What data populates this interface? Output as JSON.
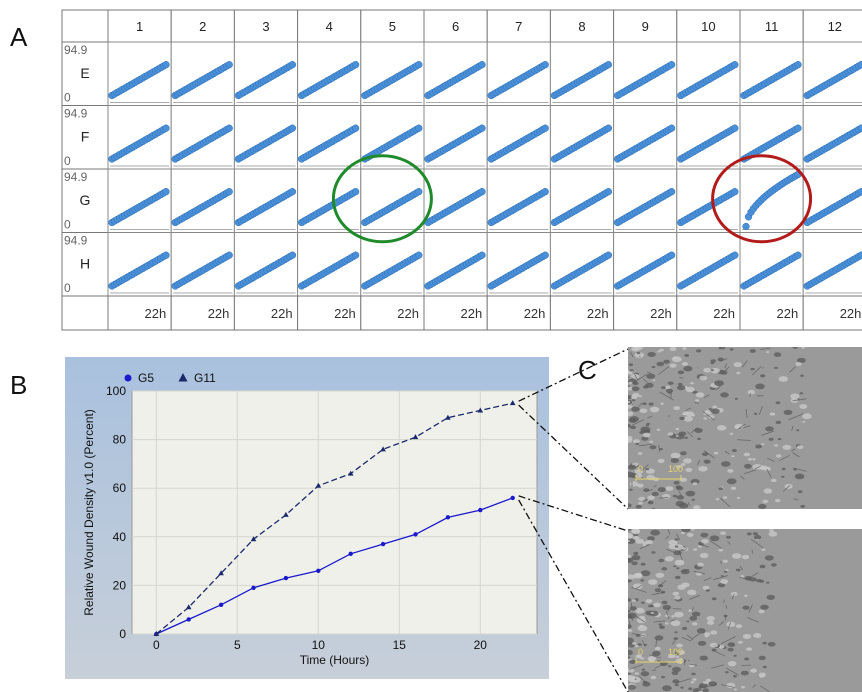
{
  "panel_labels": {
    "a": "A",
    "b": "B",
    "c": "C"
  },
  "plate": {
    "columns": [
      "1",
      "2",
      "3",
      "4",
      "5",
      "6",
      "7",
      "8",
      "9",
      "10",
      "11",
      "12"
    ],
    "rows": [
      "E",
      "F",
      "G",
      "H"
    ],
    "ymax_label": "94.9",
    "ymin_label": "0",
    "time_label": "22h",
    "highlighted_wells": [
      {
        "well": "G5",
        "circle_color": "#1e8a2a"
      },
      {
        "well": "G11",
        "circle_color": "#b31b1b"
      }
    ],
    "point_color": "#4a90d9"
  },
  "chart_data": {
    "type": "line",
    "xlabel": "Time (Hours)",
    "ylabel": "Relative Wound Density v1.0 (Percent)",
    "xlim": [
      -1.5,
      23.5
    ],
    "ylim": [
      0,
      100
    ],
    "xticks": [
      0,
      5,
      10,
      15,
      20
    ],
    "yticks": [
      0,
      20,
      40,
      60,
      80,
      100
    ],
    "grid": true,
    "legend_position": "top-left",
    "x": [
      0,
      2,
      4,
      6,
      8,
      10,
      12,
      14,
      16,
      18,
      20,
      22
    ],
    "series": [
      {
        "name": "G5",
        "marker": "circle",
        "line": "solid",
        "color": "#1a1acc",
        "values": [
          0,
          6,
          12,
          19,
          23,
          26,
          33,
          37,
          41,
          48,
          51,
          56
        ]
      },
      {
        "name": "G11",
        "marker": "triangle",
        "line": "dashed",
        "color": "#1a2a6c",
        "values": [
          0,
          11,
          25,
          39,
          49,
          61,
          66,
          76,
          81,
          89,
          92,
          95
        ]
      }
    ]
  },
  "micrographs": [
    {
      "well": "G11",
      "scale_label_0": "0",
      "scale_label_100": "100"
    },
    {
      "well": "G5",
      "scale_label_0": "0",
      "scale_label_100": "100"
    }
  ]
}
